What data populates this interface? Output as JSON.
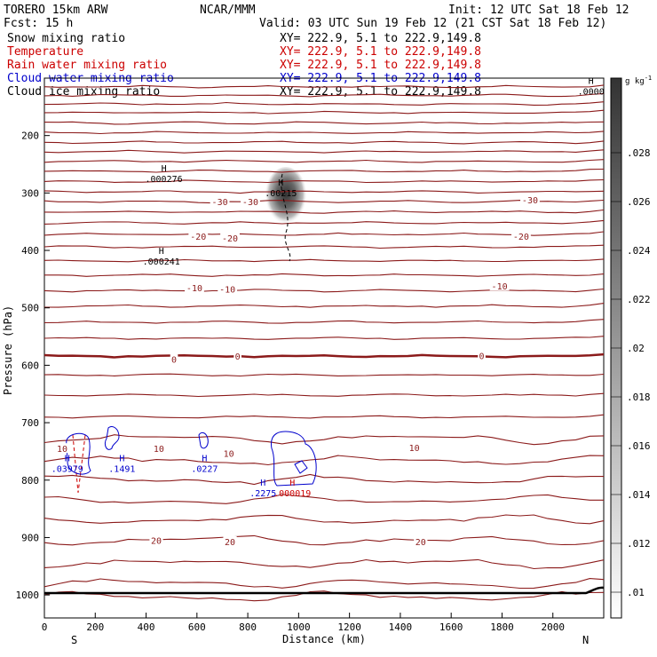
{
  "header": {
    "model": "TORERO  15km ARW",
    "org": "NCAR/MMM",
    "init": "Init: 12 UTC Sat 18 Feb 12",
    "fcst": "Fcst:   15 h",
    "valid": "Valid: 03 UTC Sun 19 Feb 12 (21 CST Sat 18 Feb 12)"
  },
  "legend": [
    {
      "label": "Snow mixing ratio",
      "xy": "XY= 222.9,  5.1 to 222.9,149.8",
      "color": "#000000"
    },
    {
      "label": "Temperature",
      "xy": "XY= 222.9,  5.1 to 222.9,149.8",
      "color": "#cc0000"
    },
    {
      "label": "Rain water mixing ratio",
      "xy": "XY= 222.9,  5.1 to 222.9,149.8",
      "color": "#cc0000"
    },
    {
      "label": "Cloud water mixing ratio",
      "xy": "XY= 222.9,  5.1 to 222.9,149.8",
      "color": "#0000cc"
    },
    {
      "label": "Cloud ice mixing ratio",
      "xy": "XY= 222.9,  5.1 to 222.9,149.8",
      "color": "#000000"
    }
  ],
  "chart_data": {
    "type": "cross-section contour",
    "xlabel": "Distance (km)",
    "ylabel": "Pressure (hPa)",
    "xlim": [
      0,
      2200
    ],
    "ylim": [
      1040,
      100
    ],
    "xticks": [
      "0",
      "200",
      "400",
      "600",
      "800",
      "1000",
      "1200",
      "1400",
      "1600",
      "1800",
      "2000"
    ],
    "yticks": [
      "200",
      "300",
      "400",
      "500",
      "600",
      "700",
      "800",
      "900",
      "1000"
    ],
    "endpoints": {
      "left": "S",
      "right": "N"
    },
    "colorbar": {
      "unit": "g kg",
      "unit_exp": "-1",
      "ticks": [
        ".01",
        ".012",
        ".014",
        ".016",
        ".018",
        ".02",
        ".022",
        ".024",
        ".026",
        ".028"
      ]
    },
    "temperature_labels": [
      {
        "text": "-30",
        "x": 690,
        "p": 315
      },
      {
        "text": "-30",
        "x": 810,
        "p": 315
      },
      {
        "text": "-30",
        "x": 1910,
        "p": 312
      },
      {
        "text": "-20",
        "x": 605,
        "p": 375
      },
      {
        "text": "-20",
        "x": 730,
        "p": 378
      },
      {
        "text": "-20",
        "x": 1875,
        "p": 375
      },
      {
        "text": "-10",
        "x": 590,
        "p": 465
      },
      {
        "text": "-10",
        "x": 720,
        "p": 467
      },
      {
        "text": "-10",
        "x": 1790,
        "p": 462
      },
      {
        "text": "0",
        "x": 510,
        "p": 589
      },
      {
        "text": "0",
        "x": 760,
        "p": 584
      },
      {
        "text": "0",
        "x": 1720,
        "p": 583
      },
      {
        "text": "10",
        "x": 70,
        "p": 745
      },
      {
        "text": "10",
        "x": 450,
        "p": 745
      },
      {
        "text": "10",
        "x": 725,
        "p": 753
      },
      {
        "text": "10",
        "x": 1455,
        "p": 743
      },
      {
        "text": "20",
        "x": 440,
        "p": 905
      },
      {
        "text": "20",
        "x": 730,
        "p": 907
      },
      {
        "text": "20",
        "x": 1480,
        "p": 907
      }
    ],
    "maxima": [
      {
        "h": "H",
        "value": ".000276",
        "x": 470,
        "p": 262,
        "color": "#000000"
      },
      {
        "h": "H",
        "value": ".00215",
        "x": 930,
        "p": 287,
        "color": "#000000"
      },
      {
        "h": "H",
        "value": ".000241",
        "x": 460,
        "p": 406,
        "color": "#000000"
      },
      {
        "h": "H",
        "value": ".0000",
        "x": 2150,
        "p": 110,
        "color": "#000000"
      },
      {
        "h": "H",
        "value": ".03979",
        "x": 90,
        "p": 767,
        "color": "#0000cc"
      },
      {
        "h": "H",
        "value": ".1491",
        "x": 305,
        "p": 767,
        "color": "#0000cc"
      },
      {
        "h": "H",
        "value": ".0227",
        "x": 630,
        "p": 767,
        "color": "#0000cc"
      },
      {
        "h": "H",
        "value": ".2275",
        "x": 860,
        "p": 810,
        "color": "#0000cc"
      },
      {
        "h": "H",
        "value": ".000019",
        "x": 975,
        "p": 810,
        "color": "#cc0000"
      }
    ]
  }
}
